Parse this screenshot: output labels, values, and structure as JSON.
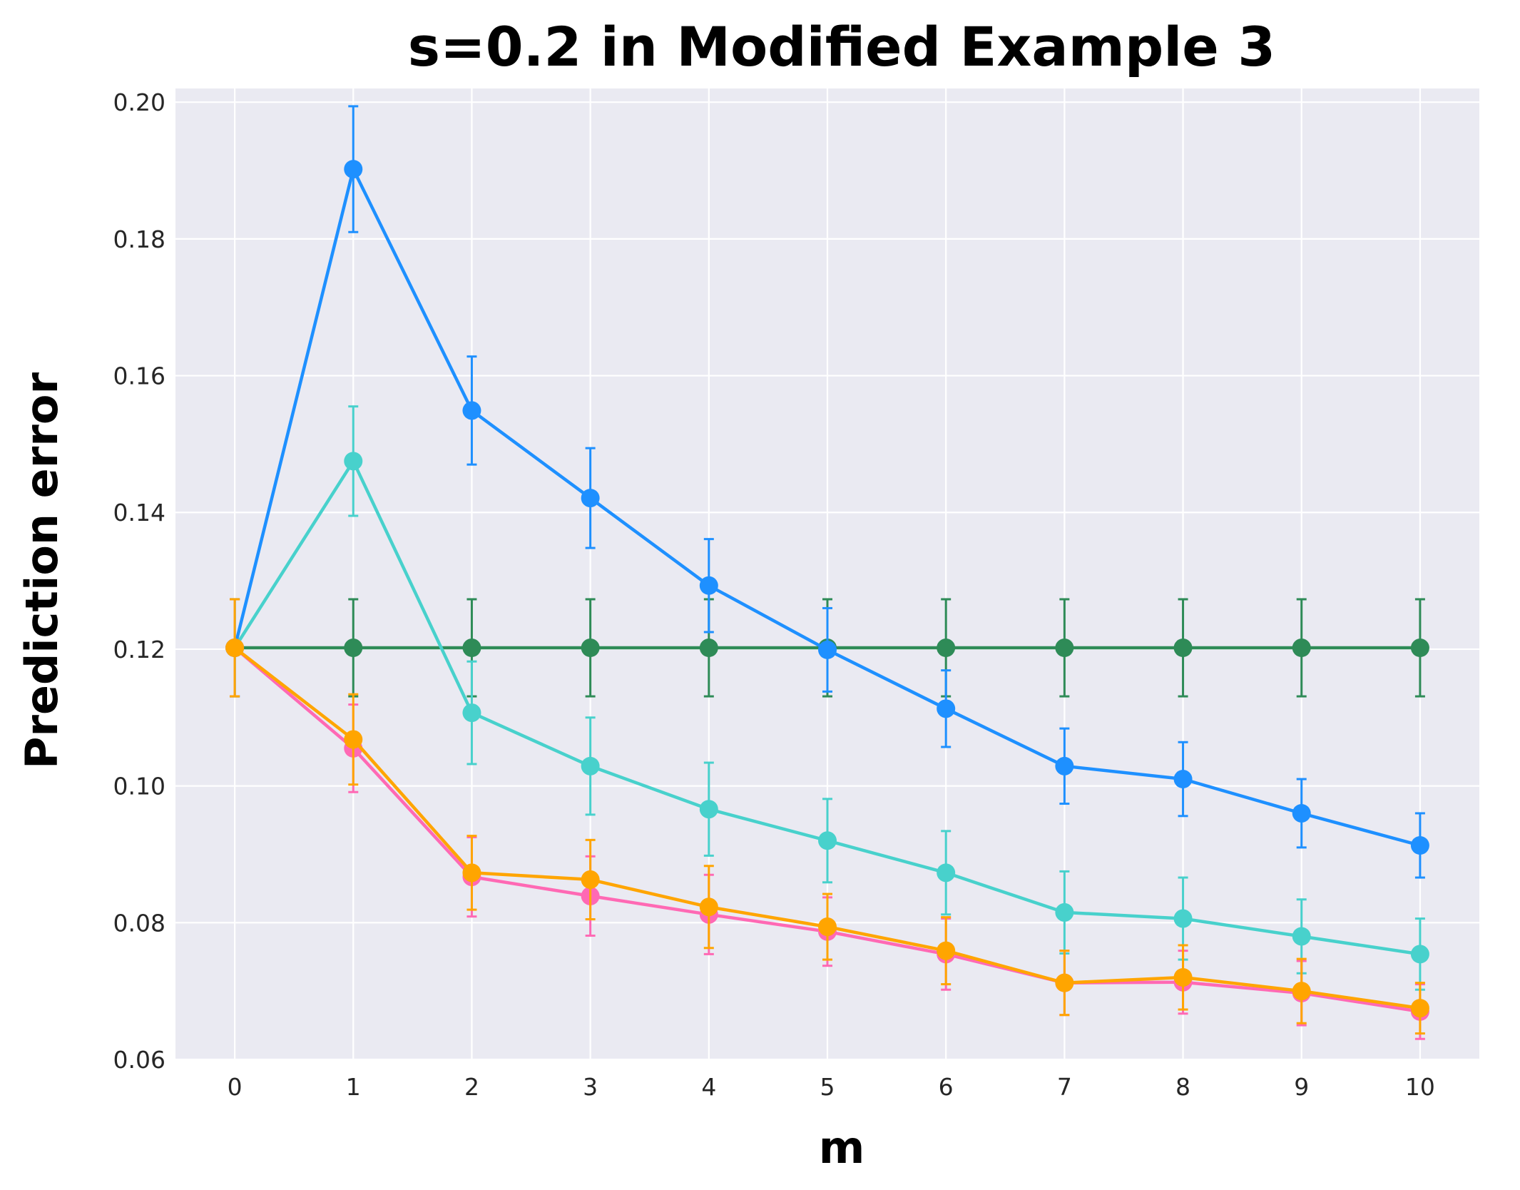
{
  "chart_data": {
    "type": "line",
    "title": "s=0.2 in Modified Example 3",
    "xlabel": "m",
    "ylabel": "Prediction error",
    "xlim": [
      -0.5,
      10.5
    ],
    "ylim": [
      0.06,
      0.202
    ],
    "x": [
      0,
      1,
      2,
      3,
      4,
      5,
      6,
      7,
      8,
      9,
      10
    ],
    "x_ticks": [
      "0",
      "1",
      "2",
      "3",
      "4",
      "5",
      "6",
      "7",
      "8",
      "9",
      "10"
    ],
    "y_ticks": [
      "0.06",
      "0.08",
      "0.10",
      "0.12",
      "0.14",
      "0.16",
      "0.18",
      "0.20"
    ],
    "grid": true,
    "background": "#eaeaf2",
    "series": [
      {
        "color": "#2e8b57",
        "values": [
          0.1202,
          0.1202,
          0.1202,
          0.1202,
          0.1202,
          0.1202,
          0.1202,
          0.1202,
          0.1202,
          0.1202,
          0.1202
        ],
        "errors": [
          0.0071,
          0.0071,
          0.0071,
          0.0071,
          0.0071,
          0.0071,
          0.0071,
          0.0071,
          0.0071,
          0.0071,
          0.0071
        ]
      },
      {
        "color": "#1e90ff",
        "values": [
          0.1202,
          0.1902,
          0.1549,
          0.1421,
          0.1293,
          0.1199,
          0.1113,
          0.1029,
          0.101,
          0.096,
          0.0913
        ],
        "errors": [
          0.0071,
          0.0092,
          0.0079,
          0.0073,
          0.0068,
          0.0061,
          0.0056,
          0.0055,
          0.0054,
          0.005,
          0.0047
        ]
      },
      {
        "color": "#48d1cc",
        "values": [
          0.1202,
          0.1475,
          0.1107,
          0.1029,
          0.0966,
          0.092,
          0.0873,
          0.0815,
          0.0806,
          0.078,
          0.0754
        ],
        "errors": [
          0.0071,
          0.008,
          0.0075,
          0.0071,
          0.0068,
          0.0061,
          0.0061,
          0.006,
          0.006,
          0.0054,
          0.0052
        ]
      },
      {
        "color": "#ff69b4",
        "values": [
          0.1202,
          0.1055,
          0.0867,
          0.0839,
          0.0812,
          0.0787,
          0.0754,
          0.0712,
          0.0713,
          0.0697,
          0.067
        ],
        "errors": [
          0.0071,
          0.0064,
          0.0058,
          0.0058,
          0.0058,
          0.005,
          0.0052,
          0.0047,
          0.0046,
          0.0047,
          0.004
        ]
      },
      {
        "color": "#ffa500",
        "values": [
          0.1202,
          0.1068,
          0.0873,
          0.0863,
          0.0823,
          0.0794,
          0.0759,
          0.0712,
          0.072,
          0.07,
          0.0675
        ],
        "errors": [
          0.0071,
          0.0066,
          0.0054,
          0.0058,
          0.006,
          0.0048,
          0.0049,
          0.0047,
          0.0047,
          0.0047,
          0.0037
        ]
      }
    ]
  }
}
